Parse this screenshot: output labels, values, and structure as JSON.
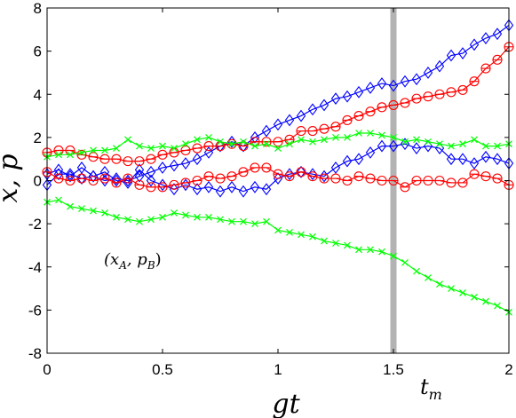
{
  "chart_data": {
    "type": "line",
    "title": "",
    "xlabel": "gt",
    "ylabel": "x, p",
    "xlim": [
      0,
      2
    ],
    "ylim": [
      -8,
      8
    ],
    "x_ticks": [
      "0",
      "0.5",
      "1",
      "1.5",
      "2"
    ],
    "y_ticks": [
      "-8",
      "-6",
      "-4",
      "-2",
      "0",
      "2",
      "4",
      "6",
      "8"
    ],
    "grid": false,
    "annotation": "(x_A, p_B)",
    "annotation_display": [
      "(x",
      "A",
      ", p",
      "B",
      ")"
    ],
    "vline": {
      "x": 1.5,
      "label_main": "t",
      "label_sub": "m",
      "color": "#b3b3b3"
    },
    "series": [
      {
        "marker": "diamond",
        "color": "#0000ff",
        "x": [
          0,
          0.05,
          0.1,
          0.15,
          0.2,
          0.25,
          0.3,
          0.35,
          0.4,
          0.45,
          0.5,
          0.55,
          0.6,
          0.65,
          0.7,
          0.75,
          0.8,
          0.85,
          0.9,
          0.95,
          1.0,
          1.05,
          1.1,
          1.15,
          1.2,
          1.25,
          1.3,
          1.35,
          1.4,
          1.45,
          1.5,
          1.55,
          1.6,
          1.65,
          1.7,
          1.75,
          1.8,
          1.85,
          1.9,
          1.95,
          2.0
        ],
        "values": [
          -0.2,
          0.3,
          0.3,
          0.1,
          0.2,
          0.0,
          0.1,
          0.0,
          0.2,
          0.4,
          0.6,
          0.7,
          0.8,
          1.0,
          1.3,
          1.6,
          1.8,
          1.6,
          2.0,
          2.3,
          2.6,
          2.8,
          3.0,
          3.3,
          3.5,
          3.8,
          3.9,
          4.1,
          4.3,
          4.5,
          4.4,
          4.6,
          4.7,
          5.0,
          5.3,
          5.8,
          5.9,
          6.3,
          6.6,
          6.8,
          7.2
        ]
      },
      {
        "marker": "diamond",
        "color": "#0000ff",
        "x": [
          0,
          0.05,
          0.1,
          0.15,
          0.2,
          0.25,
          0.3,
          0.35,
          0.4,
          0.45,
          0.5,
          0.55,
          0.6,
          0.65,
          0.7,
          0.75,
          0.8,
          0.85,
          0.9,
          0.95,
          1.0,
          1.05,
          1.1,
          1.15,
          1.2,
          1.25,
          1.3,
          1.35,
          1.4,
          1.45,
          1.5,
          1.55,
          1.6,
          1.65,
          1.7,
          1.75,
          1.8,
          1.85,
          1.9,
          1.95,
          2.0
        ],
        "values": [
          0.3,
          0.5,
          0.2,
          0.6,
          0.2,
          0.4,
          0.0,
          -0.1,
          0.5,
          0.0,
          -0.2,
          -0.4,
          -0.2,
          -0.4,
          -0.3,
          -0.5,
          -0.3,
          -0.5,
          -0.3,
          -0.4,
          0.1,
          0.3,
          0.4,
          0.3,
          0.2,
          0.6,
          0.9,
          1.0,
          1.3,
          1.6,
          1.6,
          1.7,
          1.5,
          1.6,
          1.5,
          1.0,
          1.0,
          0.8,
          1.1,
          1.0,
          0.8
        ]
      },
      {
        "marker": "circle",
        "color": "#ff0000",
        "x": [
          0,
          0.05,
          0.1,
          0.15,
          0.2,
          0.25,
          0.3,
          0.35,
          0.4,
          0.45,
          0.5,
          0.55,
          0.6,
          0.65,
          0.7,
          0.75,
          0.8,
          0.85,
          0.9,
          0.95,
          1.0,
          1.05,
          1.1,
          1.15,
          1.2,
          1.25,
          1.3,
          1.35,
          1.4,
          1.45,
          1.5,
          1.55,
          1.6,
          1.65,
          1.7,
          1.75,
          1.8,
          1.85,
          1.9,
          1.95,
          2.0
        ],
        "values": [
          1.3,
          1.4,
          1.4,
          1.2,
          1.1,
          1.0,
          1.0,
          0.9,
          0.9,
          1.0,
          1.2,
          1.3,
          1.4,
          1.5,
          1.6,
          1.6,
          1.7,
          1.6,
          1.8,
          1.8,
          1.8,
          1.9,
          2.3,
          2.3,
          2.4,
          2.5,
          2.8,
          3.0,
          3.2,
          3.4,
          3.5,
          3.6,
          3.8,
          3.9,
          4.0,
          4.1,
          4.2,
          4.6,
          5.2,
          5.6,
          6.2
        ]
      },
      {
        "marker": "circle",
        "color": "#ff0000",
        "x": [
          0,
          0.05,
          0.1,
          0.15,
          0.2,
          0.25,
          0.3,
          0.35,
          0.4,
          0.45,
          0.5,
          0.55,
          0.6,
          0.65,
          0.7,
          0.75,
          0.8,
          0.85,
          0.9,
          0.95,
          1.0,
          1.05,
          1.1,
          1.15,
          1.2,
          1.25,
          1.3,
          1.35,
          1.4,
          1.45,
          1.5,
          1.55,
          1.6,
          1.65,
          1.7,
          1.75,
          1.8,
          1.85,
          1.9,
          1.95,
          2.0
        ],
        "values": [
          0.4,
          0.1,
          0.0,
          0.1,
          0.0,
          0.1,
          -0.1,
          0.1,
          -0.2,
          -0.3,
          -0.3,
          -0.2,
          -0.1,
          0.0,
          0.2,
          0.1,
          0.2,
          0.4,
          0.6,
          0.6,
          0.3,
          0.2,
          0.4,
          0.2,
          0.1,
          0.1,
          0.0,
          0.2,
          0.1,
          0.0,
          0.0,
          -0.3,
          0.0,
          0.0,
          0.0,
          -0.1,
          -0.1,
          0.3,
          0.2,
          0.1,
          -0.2
        ]
      },
      {
        "marker": "x",
        "color": "#00ff00",
        "x": [
          0,
          0.05,
          0.1,
          0.15,
          0.2,
          0.25,
          0.3,
          0.35,
          0.4,
          0.45,
          0.5,
          0.55,
          0.6,
          0.65,
          0.7,
          0.75,
          0.8,
          0.85,
          0.9,
          0.95,
          1.0,
          1.05,
          1.1,
          1.15,
          1.2,
          1.25,
          1.3,
          1.35,
          1.4,
          1.45,
          1.5,
          1.55,
          1.6,
          1.65,
          1.7,
          1.75,
          1.8,
          1.85,
          1.9,
          1.95,
          2.0
        ],
        "values": [
          1.1,
          1.2,
          1.2,
          1.3,
          1.4,
          1.4,
          1.5,
          1.9,
          1.6,
          1.5,
          1.6,
          1.5,
          1.7,
          1.9,
          2.0,
          1.8,
          1.7,
          1.8,
          1.6,
          1.7,
          1.5,
          1.7,
          1.9,
          1.8,
          1.9,
          2.0,
          2.0,
          2.2,
          2.2,
          2.1,
          2.0,
          1.8,
          1.9,
          1.8,
          1.7,
          1.6,
          1.7,
          1.9,
          1.6,
          1.6,
          1.7
        ]
      },
      {
        "marker": "x",
        "color": "#00ff00",
        "x": [
          0,
          0.05,
          0.1,
          0.15,
          0.2,
          0.25,
          0.3,
          0.35,
          0.4,
          0.45,
          0.5,
          0.55,
          0.6,
          0.65,
          0.7,
          0.75,
          0.8,
          0.85,
          0.9,
          0.95,
          1.0,
          1.05,
          1.1,
          1.15,
          1.2,
          1.25,
          1.3,
          1.35,
          1.4,
          1.45,
          1.5,
          1.55,
          1.6,
          1.65,
          1.7,
          1.75,
          1.8,
          1.85,
          1.9,
          1.95,
          2.0
        ],
        "values": [
          -1.0,
          -0.9,
          -1.2,
          -1.3,
          -1.4,
          -1.5,
          -1.7,
          -1.8,
          -1.9,
          -1.8,
          -1.7,
          -1.5,
          -1.6,
          -1.7,
          -1.7,
          -1.8,
          -1.9,
          -1.9,
          -2.0,
          -1.9,
          -2.3,
          -2.4,
          -2.5,
          -2.6,
          -2.8,
          -2.9,
          -3.0,
          -3.2,
          -3.2,
          -3.3,
          -3.5,
          -3.8,
          -4.2,
          -4.5,
          -4.8,
          -5.0,
          -5.2,
          -5.4,
          -5.6,
          -5.8,
          -6.1
        ]
      }
    ]
  }
}
